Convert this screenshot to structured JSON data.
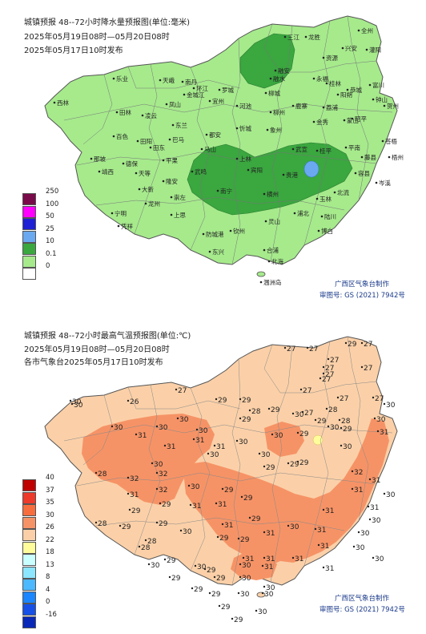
{
  "precip": {
    "title_line1": "城镇预报 48--72小时降水量预报图(单位:毫米)",
    "title_line2": "2025年05月19日08时—05月20日08时",
    "title_line3": "2025年05月17日10时发布",
    "legend": [
      {
        "label": "250",
        "color": "#7a0b4b"
      },
      {
        "label": "100",
        "color": "#ff00ff"
      },
      {
        "label": "50",
        "color": "#1f1fd6"
      },
      {
        "label": "25",
        "color": "#6aa9f0"
      },
      {
        "label": "10",
        "color": "#3aa73f"
      },
      {
        "label": "0.1",
        "color": "#a6ea8c"
      },
      {
        "label": "0",
        "color": "#ffffff"
      }
    ],
    "maker": "广西区气象台制作",
    "map_no": "审图号: GS (2021) 7942号",
    "cities": [
      "三江",
      "龙胜",
      "全州",
      "资源",
      "兴安",
      "灌阳",
      "融安",
      "融水",
      "永福",
      "桂林",
      "阳朔",
      "乐业",
      "西林",
      "田林",
      "凌云",
      "天峨",
      "南丹",
      "环江",
      "罗城",
      "金城江",
      "宜州",
      "河池",
      "柳城",
      "柳州",
      "鹿寨",
      "荔浦",
      "恭城",
      "富川",
      "钟山",
      "昭平",
      "贺州",
      "凤山",
      "东兰",
      "巴马",
      "都安",
      "忻城",
      "象州",
      "金秀",
      "蒙山",
      "百色",
      "田阳",
      "田东",
      "平果",
      "马山",
      "上林",
      "武宣",
      "桂平",
      "平南",
      "藤县",
      "苍梧",
      "梧州",
      "那坡",
      "德保",
      "靖西",
      "天等",
      "隆安",
      "武鸣",
      "宾阳",
      "贵港",
      "容县",
      "岑溪",
      "大新",
      "龙州",
      "崇左",
      "南宁",
      "横州",
      "北流",
      "玉林",
      "陆川",
      "宁明",
      "凭祥",
      "上思",
      "钦州",
      "灵山",
      "浦北",
      "博白",
      "防城港",
      "东兴",
      "合浦",
      "北海",
      "涠洲岛"
    ]
  },
  "temp": {
    "title_line1": "城镇预报 48--72小时最高气温预报图(单位:℃)",
    "title_line2": "2025年05月19日08时—05月20日08时",
    "title_line3": "各市气象台2025年05月17日10时发布",
    "legend": [
      {
        "label": "40",
        "color": "#c00000"
      },
      {
        "label": "37",
        "color": "#ee3a2a"
      },
      {
        "label": "35",
        "color": "#f86d3d"
      },
      {
        "label": "30",
        "color": "#f69366"
      },
      {
        "label": "26",
        "color": "#fbd0a8"
      },
      {
        "label": "22",
        "color": "#fffd9b"
      },
      {
        "label": "18",
        "color": "#c9ffff"
      },
      {
        "label": "13",
        "color": "#8ce6ff"
      },
      {
        "label": "8",
        "color": "#4bb8ff"
      },
      {
        "label": "4",
        "color": "#1b86ff"
      },
      {
        "label": "0",
        "color": "#1650e6"
      },
      {
        "label": "-16",
        "color": "#0a28b8"
      }
    ],
    "maker": "广西区气象台制作",
    "map_no": "审图号: GS (2021) 7942号",
    "values": [
      "30",
      "27",
      "27",
      "29",
      "27",
      "27",
      "27",
      "27",
      "27",
      "27",
      "27",
      "27",
      "30",
      "26",
      "30",
      "27",
      "29",
      "29",
      "28",
      "27",
      "28",
      "28",
      "27",
      "30",
      "29",
      "29",
      "30",
      "29",
      "30",
      "29",
      "31",
      "30",
      "30",
      "30",
      "31",
      "31",
      "31",
      "31",
      "30",
      "30",
      "29",
      "30",
      "30",
      "30",
      "30",
      "30",
      "29",
      "32",
      "32",
      "28",
      "31",
      "32",
      "30",
      "29",
      "29",
      "29",
      "31",
      "31",
      "29",
      "32",
      "31",
      "31",
      "31",
      "30",
      "28",
      "29",
      "29",
      "29",
      "29",
      "30",
      "31",
      "29",
      "31",
      "30",
      "31",
      "31",
      "29",
      "29",
      "28",
      "28",
      "29",
      "30",
      "31",
      "31",
      "29",
      "29",
      "30",
      "31",
      "31",
      "31",
      "30",
      "31",
      "30",
      "30",
      "30",
      "30",
      "29",
      "29",
      "29",
      "29",
      "30",
      "30",
      "29",
      "30",
      "30",
      "30"
    ]
  }
}
